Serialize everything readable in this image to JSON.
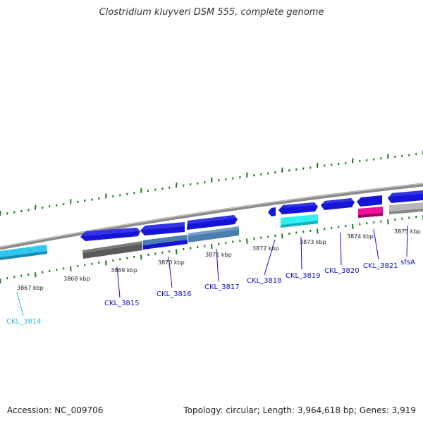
{
  "title": "Clostridium kluyveri DSM 555, complete genome",
  "footer": {
    "accession": "Accession: NC_009706",
    "summary": "Topology: circular; Length: 3,964,618 bp; Genes: 3,919"
  },
  "colors": {
    "gene_blue": "#1010e0",
    "gene_cyan": "#30c8f0",
    "gene_light_cyan": "#30f0f0",
    "gene_gray": "#5a5a5a",
    "gene_steel": "#4a7fb0",
    "gene_pink": "#f0109a",
    "gene_light_gray": "#b8b8b8",
    "tick_green": "#1a7a1a",
    "label_blue": "#1010c0",
    "label_cyan": "#30b8d8"
  },
  "ticks": [
    {
      "label": "3867 kbp"
    },
    {
      "label": "3868 kbp"
    },
    {
      "label": "3869 kbp"
    },
    {
      "label": "3870 kbp"
    },
    {
      "label": "3871 kbp"
    },
    {
      "label": "3872 kbp"
    },
    {
      "label": "3873 kbp"
    },
    {
      "label": "3874 kbp"
    },
    {
      "label": "3875 kbp"
    }
  ],
  "genes": [
    {
      "label": "CKL_3814",
      "color": "label_cyan"
    },
    {
      "label": "CKL_3815",
      "color": "label_blue"
    },
    {
      "label": "CKL_3816",
      "color": "label_blue"
    },
    {
      "label": "CKL_3817",
      "color": "label_blue"
    },
    {
      "label": "CKL_3818",
      "color": "label_blue"
    },
    {
      "label": "CKL_3819",
      "color": "label_blue"
    },
    {
      "label": "CKL_3820",
      "color": "label_blue"
    },
    {
      "label": "CKL_3821",
      "color": "label_blue"
    },
    {
      "label": "sfsA",
      "color": "label_blue"
    }
  ]
}
